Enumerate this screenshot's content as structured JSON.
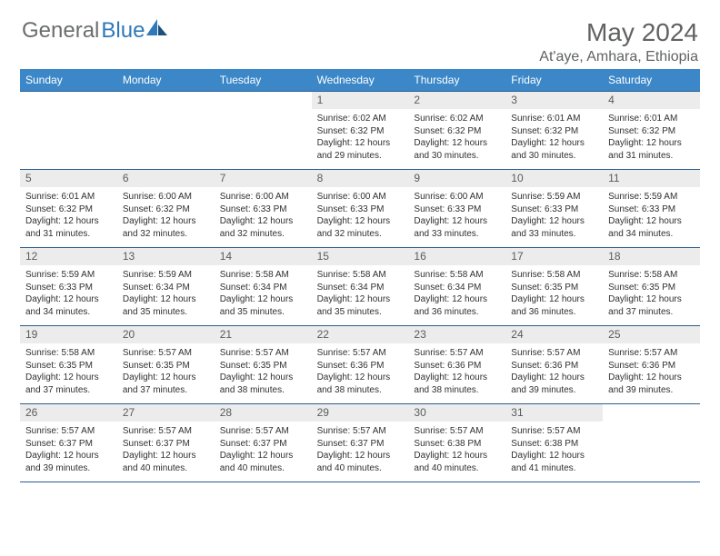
{
  "brand": {
    "part1": "General",
    "part2": "Blue"
  },
  "title": "May 2024",
  "location": "At'aye, Amhara, Ethiopia",
  "colors": {
    "headerBar": "#3c87c7",
    "headerText": "#ffffff",
    "dayNumBg": "#ececec",
    "borderColor": "#2c5e8c",
    "brandGray": "#6a6d6f",
    "brandBlue": "#2f79b9"
  },
  "weekdays": [
    "Sunday",
    "Monday",
    "Tuesday",
    "Wednesday",
    "Thursday",
    "Friday",
    "Saturday"
  ],
  "firstDayOffset": 3,
  "days": [
    {
      "n": 1,
      "sr": "6:02 AM",
      "ss": "6:32 PM",
      "dh": 12,
      "dm": 29
    },
    {
      "n": 2,
      "sr": "6:02 AM",
      "ss": "6:32 PM",
      "dh": 12,
      "dm": 30
    },
    {
      "n": 3,
      "sr": "6:01 AM",
      "ss": "6:32 PM",
      "dh": 12,
      "dm": 30
    },
    {
      "n": 4,
      "sr": "6:01 AM",
      "ss": "6:32 PM",
      "dh": 12,
      "dm": 31
    },
    {
      "n": 5,
      "sr": "6:01 AM",
      "ss": "6:32 PM",
      "dh": 12,
      "dm": 31
    },
    {
      "n": 6,
      "sr": "6:00 AM",
      "ss": "6:32 PM",
      "dh": 12,
      "dm": 32
    },
    {
      "n": 7,
      "sr": "6:00 AM",
      "ss": "6:33 PM",
      "dh": 12,
      "dm": 32
    },
    {
      "n": 8,
      "sr": "6:00 AM",
      "ss": "6:33 PM",
      "dh": 12,
      "dm": 32
    },
    {
      "n": 9,
      "sr": "6:00 AM",
      "ss": "6:33 PM",
      "dh": 12,
      "dm": 33
    },
    {
      "n": 10,
      "sr": "5:59 AM",
      "ss": "6:33 PM",
      "dh": 12,
      "dm": 33
    },
    {
      "n": 11,
      "sr": "5:59 AM",
      "ss": "6:33 PM",
      "dh": 12,
      "dm": 34
    },
    {
      "n": 12,
      "sr": "5:59 AM",
      "ss": "6:33 PM",
      "dh": 12,
      "dm": 34
    },
    {
      "n": 13,
      "sr": "5:59 AM",
      "ss": "6:34 PM",
      "dh": 12,
      "dm": 35
    },
    {
      "n": 14,
      "sr": "5:58 AM",
      "ss": "6:34 PM",
      "dh": 12,
      "dm": 35
    },
    {
      "n": 15,
      "sr": "5:58 AM",
      "ss": "6:34 PM",
      "dh": 12,
      "dm": 35
    },
    {
      "n": 16,
      "sr": "5:58 AM",
      "ss": "6:34 PM",
      "dh": 12,
      "dm": 36
    },
    {
      "n": 17,
      "sr": "5:58 AM",
      "ss": "6:35 PM",
      "dh": 12,
      "dm": 36
    },
    {
      "n": 18,
      "sr": "5:58 AM",
      "ss": "6:35 PM",
      "dh": 12,
      "dm": 37
    },
    {
      "n": 19,
      "sr": "5:58 AM",
      "ss": "6:35 PM",
      "dh": 12,
      "dm": 37
    },
    {
      "n": 20,
      "sr": "5:57 AM",
      "ss": "6:35 PM",
      "dh": 12,
      "dm": 37
    },
    {
      "n": 21,
      "sr": "5:57 AM",
      "ss": "6:35 PM",
      "dh": 12,
      "dm": 38
    },
    {
      "n": 22,
      "sr": "5:57 AM",
      "ss": "6:36 PM",
      "dh": 12,
      "dm": 38
    },
    {
      "n": 23,
      "sr": "5:57 AM",
      "ss": "6:36 PM",
      "dh": 12,
      "dm": 38
    },
    {
      "n": 24,
      "sr": "5:57 AM",
      "ss": "6:36 PM",
      "dh": 12,
      "dm": 39
    },
    {
      "n": 25,
      "sr": "5:57 AM",
      "ss": "6:36 PM",
      "dh": 12,
      "dm": 39
    },
    {
      "n": 26,
      "sr": "5:57 AM",
      "ss": "6:37 PM",
      "dh": 12,
      "dm": 39
    },
    {
      "n": 27,
      "sr": "5:57 AM",
      "ss": "6:37 PM",
      "dh": 12,
      "dm": 40
    },
    {
      "n": 28,
      "sr": "5:57 AM",
      "ss": "6:37 PM",
      "dh": 12,
      "dm": 40
    },
    {
      "n": 29,
      "sr": "5:57 AM",
      "ss": "6:37 PM",
      "dh": 12,
      "dm": 40
    },
    {
      "n": 30,
      "sr": "5:57 AM",
      "ss": "6:38 PM",
      "dh": 12,
      "dm": 40
    },
    {
      "n": 31,
      "sr": "5:57 AM",
      "ss": "6:38 PM",
      "dh": 12,
      "dm": 41
    }
  ],
  "labels": {
    "sunrise": "Sunrise:",
    "sunset": "Sunset:",
    "daylight": "Daylight:",
    "hours": "hours",
    "and": "and",
    "minutes": "minutes."
  }
}
